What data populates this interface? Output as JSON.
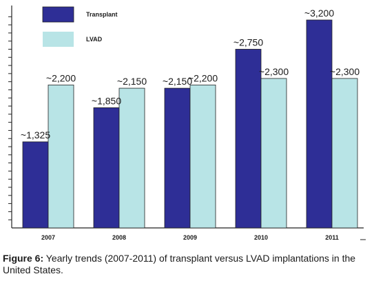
{
  "chart_data": {
    "type": "bar",
    "categories": [
      "2007",
      "2008",
      "2009",
      "2010",
      "2011"
    ],
    "series": [
      {
        "name": "Transplant",
        "color": "#2e2e96",
        "values": [
          1325,
          1850,
          2150,
          2750,
          3200
        ],
        "labels": [
          "~1,325",
          "~1,850",
          "~2,150",
          "~2,750",
          "~3,200"
        ]
      },
      {
        "name": "LVAD",
        "color": "#b8e4e6",
        "values": [
          2200,
          2150,
          2200,
          2300,
          2300
        ],
        "labels": [
          "~2,200",
          "~2,150",
          "~2,200",
          "~2,300",
          "~2,300"
        ]
      }
    ],
    "ylim": [
      0,
      3250
    ],
    "y_tick_labels": "none",
    "grid": false,
    "legend": "top-left"
  },
  "caption": {
    "label": "Figure 6:",
    "text": " Yearly trends (2007-2011) of transplant versus LVAD implantations in the United States."
  }
}
